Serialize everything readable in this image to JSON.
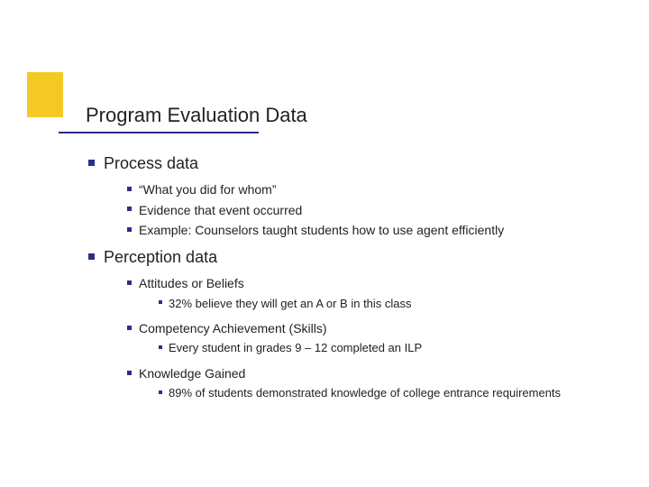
{
  "accent_color": "#f4c926",
  "rule_color": "#2b2f85",
  "bullet_color": "#2b2f85",
  "title": "Program Evaluation Data",
  "sections": {
    "process": {
      "heading": "Process data",
      "items": [
        "“What you did for whom”",
        "Evidence that event occurred",
        "Example:  Counselors taught students how to use agent efficiently"
      ]
    },
    "perception": {
      "heading": "Perception data",
      "sub": {
        "attitudes": {
          "label": "Attitudes or Beliefs",
          "detail": "32% believe they will get an A or B in this class"
        },
        "competency": {
          "label": "Competency Achievement (Skills)",
          "detail": "Every student in grades 9 – 12 completed an ILP"
        },
        "knowledge": {
          "label": "Knowledge Gained",
          "detail": "89% of students demonstrated knowledge of college entrance requirements"
        }
      }
    }
  }
}
